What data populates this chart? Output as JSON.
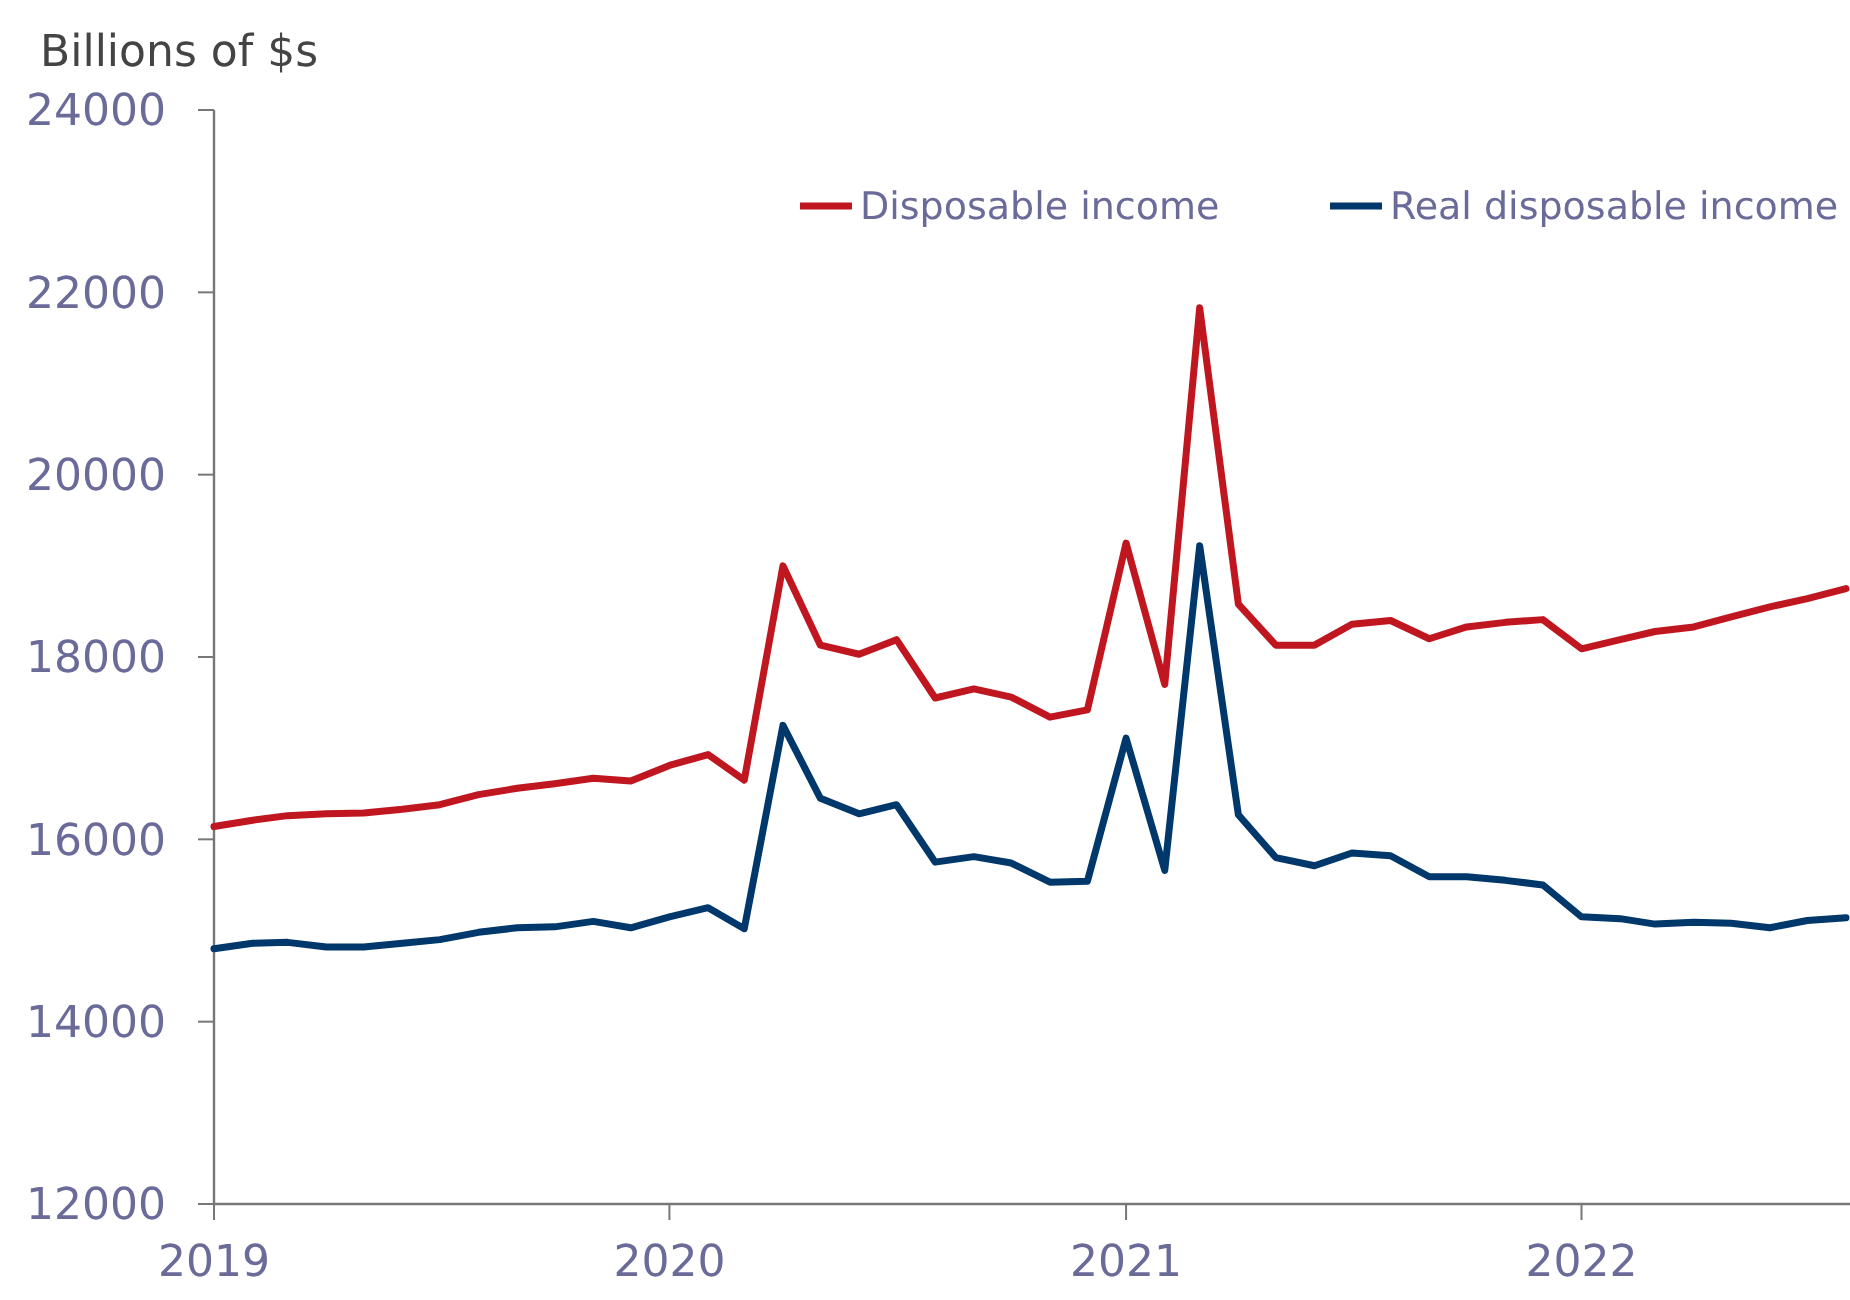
{
  "chart_data": {
    "type": "line",
    "ylabel": "Billions of $s",
    "x": [
      "2019-01",
      "2019-02",
      "2019-03",
      "2019-04",
      "2019-05",
      "2019-06",
      "2019-07",
      "2019-08",
      "2019-09",
      "2019-10",
      "2019-11",
      "2019-12",
      "2020-01",
      "2020-02",
      "2020-03",
      "2020-04",
      "2020-05",
      "2020-06",
      "2020-07",
      "2020-08",
      "2020-09",
      "2020-10",
      "2020-11",
      "2020-12",
      "2021-01",
      "2021-02",
      "2021-03",
      "2021-04",
      "2021-05",
      "2021-06",
      "2021-07",
      "2021-08",
      "2021-09",
      "2021-10",
      "2021-11",
      "2021-12",
      "2022-01",
      "2022-02",
      "2022-03",
      "2022-04",
      "2022-05",
      "2022-06",
      "2022-07",
      "2022-08"
    ],
    "series": [
      {
        "name": "Disposable income",
        "color": "#c0161f",
        "values": [
          16140,
          16210,
          16260,
          16280,
          16290,
          16330,
          16380,
          16490,
          16560,
          16610,
          16670,
          16640,
          16810,
          16930,
          16650,
          19000,
          18130,
          18030,
          18190,
          17550,
          17650,
          17560,
          17340,
          17420,
          19250,
          17700,
          21830,
          18580,
          18130,
          18130,
          18360,
          18400,
          18200,
          18330,
          18380,
          18410,
          18090,
          18190,
          18280,
          18330,
          18440,
          18550,
          18640,
          18750
        ]
      },
      {
        "name": "Real disposable income",
        "color": "#00386b",
        "values": [
          14800,
          14860,
          14870,
          14820,
          14820,
          14860,
          14900,
          14980,
          15030,
          15040,
          15100,
          15030,
          15150,
          15250,
          15020,
          17250,
          16450,
          16280,
          16380,
          15750,
          15810,
          15740,
          15530,
          15540,
          17110,
          15660,
          19220,
          16270,
          15800,
          15710,
          15850,
          15820,
          15590,
          15590,
          15550,
          15500,
          15150,
          15130,
          15070,
          15090,
          15080,
          15030,
          15110,
          15140
        ]
      }
    ],
    "xlim": [
      "2019-01-01",
      "2022-08-01"
    ],
    "xticks": [
      {
        "value": "2019-01-01",
        "label": "2019"
      },
      {
        "value": "2020-01-01",
        "label": "2020"
      },
      {
        "value": "2021-01-01",
        "label": "2021"
      },
      {
        "value": "2022-01-01",
        "label": "2022"
      }
    ],
    "ylim": [
      12000,
      24000
    ],
    "yticks": [
      12000,
      14000,
      16000,
      18000,
      20000,
      22000,
      24000
    ],
    "grid": false,
    "legend": "top right",
    "line_style": "solid"
  }
}
